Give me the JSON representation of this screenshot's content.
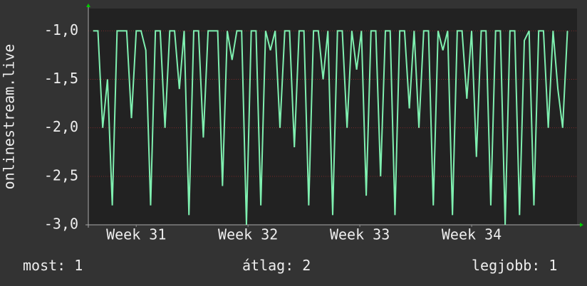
{
  "chart_data": {
    "type": "line",
    "y_label": "onlinestream.live",
    "x": [
      0.3,
      0.6,
      0.9,
      1.2,
      1.5,
      1.8,
      2.1,
      2.4,
      2.7,
      3,
      3.3,
      3.6,
      3.9,
      4.2,
      4.5,
      4.8,
      5.1,
      5.4,
      5.7,
      6,
      6.3,
      6.6,
      6.9,
      7.2,
      7.5,
      7.8,
      8.1,
      8.4,
      8.7,
      9,
      9.3,
      9.6,
      9.9,
      10.2,
      10.5,
      10.8,
      11.1,
      11.4,
      11.7,
      12,
      12.3,
      12.6,
      12.9,
      13.2,
      13.5,
      13.8,
      14.1,
      14.4,
      14.7,
      15,
      15.3,
      15.6,
      15.9,
      16.2,
      16.5,
      16.8,
      17.1,
      17.4,
      17.7,
      18,
      18.3,
      18.6,
      18.9,
      19.2,
      19.5,
      19.8,
      20.1,
      20.4,
      20.7,
      21,
      21.3,
      21.6,
      21.9,
      22.2,
      22.5,
      22.8,
      23.1,
      23.4,
      23.7,
      24,
      24.3,
      24.6,
      24.9,
      25.2,
      25.5,
      25.8,
      26.1,
      26.4,
      26.7,
      27,
      27.3,
      27.6,
      27.9,
      28.2,
      28.5,
      28.8,
      29.1,
      29.4,
      29.7,
      30
    ],
    "series": [
      {
        "color": "#7ff0b0",
        "values": [
          -1,
          -1,
          -2,
          -1.5,
          -2.8,
          -1,
          -1,
          -1,
          -1.9,
          -1,
          -1,
          -1.2,
          -2.8,
          -1,
          -1,
          -2,
          -1,
          -1,
          -1.6,
          -1,
          -2.9,
          -1,
          -1,
          -2.1,
          -1,
          -1,
          -1,
          -2.6,
          -1,
          -1.3,
          -1,
          -1,
          -3,
          -1,
          -1,
          -2.8,
          -1,
          -1.2,
          -1,
          -2,
          -1,
          -1,
          -2.2,
          -1,
          -1,
          -2.8,
          -1,
          -1,
          -1.5,
          -1,
          -2.9,
          -1,
          -1,
          -2,
          -1,
          -1.4,
          -1,
          -2.7,
          -1,
          -1,
          -2.5,
          -1,
          -1,
          -2.9,
          -1,
          -1,
          -1.8,
          -1,
          -2,
          -1,
          -1,
          -2.8,
          -1,
          -1.2,
          -1,
          -2.9,
          -1,
          -1,
          -1.7,
          -1,
          -2.3,
          -1,
          -1,
          -2.8,
          -1,
          -1,
          -3,
          -1,
          -1,
          -2.9,
          -1.1,
          -1,
          -2.8,
          -1,
          -1,
          -2,
          -1,
          -1.6,
          -2,
          -1
        ]
      }
    ],
    "xlim": [
      0,
      30.6
    ],
    "xticks": [
      {
        "value": 3,
        "label": "Week 31"
      },
      {
        "value": 10,
        "label": "Week 32"
      },
      {
        "value": 17,
        "label": "Week 33"
      },
      {
        "value": 24,
        "label": "Week 34"
      }
    ],
    "ylim": [
      -3,
      -0.77
    ],
    "yticks": [
      {
        "value": -3,
        "label": "-3,0"
      },
      {
        "value": -2.5,
        "label": "-2,5"
      },
      {
        "value": -2,
        "label": "-2,0"
      },
      {
        "value": -1.5,
        "label": "-1,5"
      },
      {
        "value": -1,
        "label": "-1,0"
      }
    ],
    "grid": true,
    "stats": [
      {
        "label": "most:",
        "value": 1
      },
      {
        "label": "átlag:",
        "value": 2
      },
      {
        "label": "legjobb:",
        "value": 1
      }
    ]
  }
}
